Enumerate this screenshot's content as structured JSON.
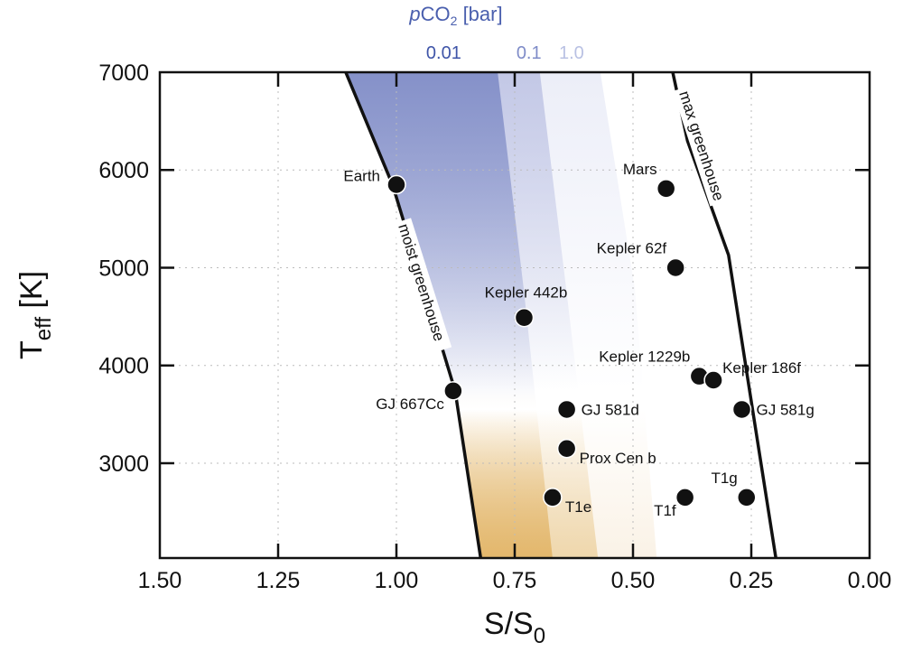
{
  "chart_data": {
    "type": "scatter",
    "xlabel": "S/S",
    "xlabel_sub": "0",
    "ylabel": "T",
    "ylabel_sub": "eff",
    "ylabel_unit": " [K]",
    "xlim": [
      1.5,
      0.0
    ],
    "x_reversed": true,
    "ylim": [
      2030,
      7000
    ],
    "grid": true,
    "xticks": [
      "1.50",
      "1.25",
      "1.00",
      "0.75",
      "0.50",
      "0.25",
      "0.00"
    ],
    "yticks": [
      "3000",
      "4000",
      "5000",
      "6000",
      "7000"
    ],
    "top_axis": {
      "title_italic": "p",
      "title": "CO",
      "title_sub": "2",
      "title_unit": " [bar]",
      "color": "#4a5fae",
      "labels": [
        {
          "text": "0.01",
          "x": 0.9,
          "color": "#3f55a8"
        },
        {
          "text": "0.1",
          "x": 0.72,
          "color": "#7f8cc8"
        },
        {
          "text": "1.0",
          "x": 0.63,
          "color": "#b9c1e3"
        }
      ]
    },
    "curves": [
      {
        "name": "moist greenhouse",
        "points": [
          [
            1.107,
            7000
          ],
          [
            1.008,
            5846
          ],
          [
            0.941,
            4780
          ],
          [
            0.876,
            3740
          ],
          [
            0.822,
            2030
          ]
        ]
      },
      {
        "name": "max greenhouse",
        "points": [
          [
            0.416,
            7000
          ],
          [
            0.385,
            6300
          ],
          [
            0.298,
            5130
          ],
          [
            0.257,
            3850
          ],
          [
            0.198,
            2030
          ]
        ]
      }
    ],
    "bands": [
      {
        "pco2": "0.01",
        "edge": [
          [
            0.786,
            7000
          ],
          [
            0.731,
            4780
          ],
          [
            0.67,
            2030
          ]
        ],
        "cool_color": "#e3b76c",
        "warm_color": "#8591c9"
      },
      {
        "pco2": "0.1",
        "edge": [
          [
            0.697,
            7000
          ],
          [
            0.641,
            4780
          ],
          [
            0.574,
            2030
          ]
        ],
        "cool_color": "#efd7ac",
        "warm_color": "#c3c8e6"
      },
      {
        "pco2": "1.0",
        "edge": [
          [
            0.569,
            7000
          ],
          [
            0.496,
            4780
          ],
          [
            0.45,
            2030
          ]
        ],
        "cool_color": "#faf2e6",
        "warm_color": "#eceef8"
      }
    ],
    "transition_teff": 3650,
    "points": [
      {
        "label": "Earth",
        "S": 1.0,
        "Teff": 5850,
        "label_pos": "left"
      },
      {
        "label": "Mars",
        "S": 0.43,
        "Teff": 5810,
        "label_pos": "above-left"
      },
      {
        "label": "Kepler 62f",
        "S": 0.41,
        "Teff": 5000,
        "label_pos": "above-left"
      },
      {
        "label": "Kepler 442b",
        "S": 0.73,
        "Teff": 4490,
        "label_pos": "above"
      },
      {
        "label": "GJ 667Cc",
        "S": 0.88,
        "Teff": 3740,
        "label_pos": "below-left"
      },
      {
        "label": "Kepler 1229b",
        "S": 0.36,
        "Teff": 3890,
        "label_pos": "above-left"
      },
      {
        "label": "Kepler 186f",
        "S": 0.33,
        "Teff": 3850,
        "label_pos": "above-right"
      },
      {
        "label": "GJ 581d",
        "S": 0.64,
        "Teff": 3550,
        "label_pos": "right"
      },
      {
        "label": "GJ 581g",
        "S": 0.27,
        "Teff": 3550,
        "label_pos": "right"
      },
      {
        "label": "Prox Cen b",
        "S": 0.64,
        "Teff": 3150,
        "label_pos": "below-right"
      },
      {
        "label": "T1e",
        "S": 0.67,
        "Teff": 2650,
        "label_pos": "below-right"
      },
      {
        "label": "T1f",
        "S": 0.39,
        "Teff": 2650,
        "label_pos": "below-left"
      },
      {
        "label": "T1g",
        "S": 0.26,
        "Teff": 2650,
        "label_pos": "above-left"
      }
    ]
  }
}
